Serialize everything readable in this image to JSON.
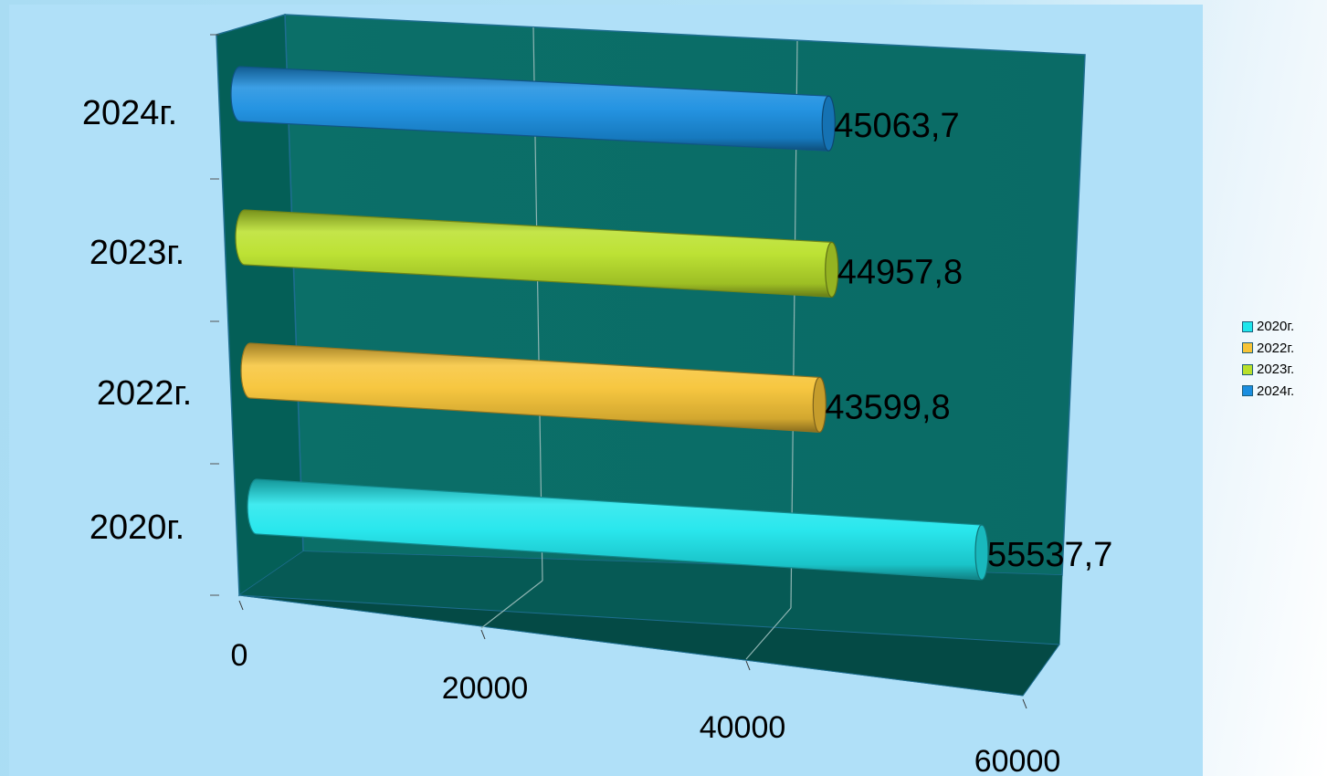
{
  "chart_data": {
    "type": "bar",
    "orientation": "horizontal",
    "style": "3d-cylinder",
    "categories": [
      "2020г.",
      "2022г.",
      "2023г.",
      "2024г."
    ],
    "values": [
      55537.7,
      43599.8,
      44957.8,
      45063.7
    ],
    "data_labels": [
      "55537,7",
      "43599,8",
      "44957,8",
      "45063,7"
    ],
    "xlim": [
      0,
      60000
    ],
    "x_ticks": [
      "0",
      "20000",
      "40000",
      "60000"
    ],
    "colors": [
      "#1fe6ec",
      "#f7c437",
      "#b9e02a",
      "#1a8ee0"
    ],
    "grid": true,
    "legend_position": "right",
    "legend": [
      {
        "label": "2020г.",
        "color": "#1fe6ec"
      },
      {
        "label": "2022г.",
        "color": "#f7c437"
      },
      {
        "label": "2023г.",
        "color": "#b9e02a"
      },
      {
        "label": "2024г.",
        "color": "#1a8ee0"
      }
    ]
  }
}
